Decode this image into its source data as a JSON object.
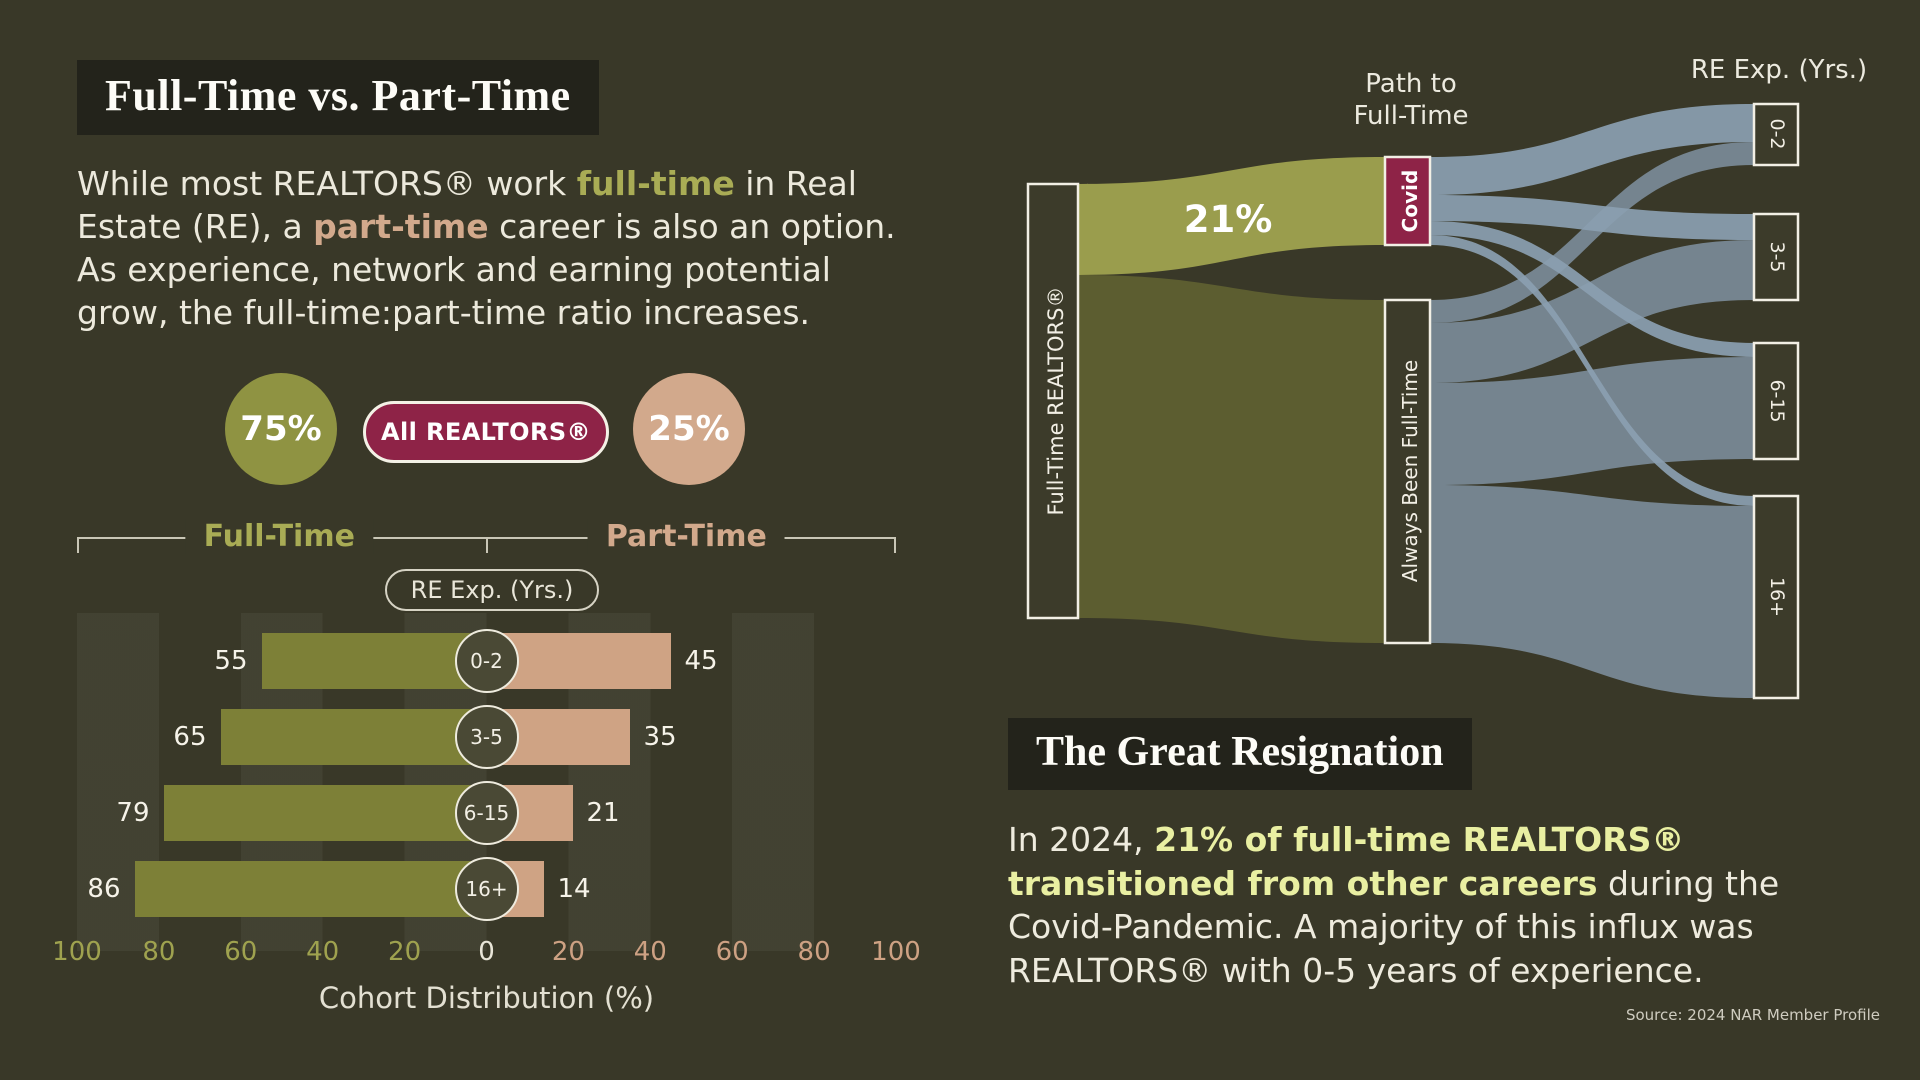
{
  "colors": {
    "background": "#393828",
    "panel_dark": "#23231b",
    "olive": "#8f9342",
    "olive_text": "#a9ac55",
    "olive_bar": "#7d8037",
    "olive_flow": "#9a9d4d",
    "olive_flow_dark": "#5c5d30",
    "tan": "#d2a98c",
    "tan_bar": "#cfa384",
    "maroon": "#8e2347",
    "blue_flow": "#8497a9",
    "highlight_yellow": "#e9efa2",
    "text_light": "#f2efe5"
  },
  "left_panel": {
    "title": "Full-Time vs. Part-Time",
    "intro": {
      "part1": "While most REALTORS® work ",
      "full_time_word": "full-time",
      "part2": " in Real Estate (RE), a ",
      "part_time_word": "part-time",
      "part3": " career is also an option. As experience, network and earning potential grow, the full-time:part-time ratio increases."
    },
    "summary": {
      "full_time_pct": "75%",
      "badge_label": "All REALTORS®",
      "part_time_pct": "25%",
      "full_time_label": "Full-Time",
      "part_time_label": "Part-Time",
      "experience_pill": "RE Exp. (Yrs.)"
    },
    "axis": {
      "xlabel": "Cohort Distribution (%)"
    }
  },
  "right_panel": {
    "sankey": {
      "header_line1": "Path to",
      "header_line2": "Full-Time",
      "right_axis_label": "RE Exp. (Yrs.)",
      "covid_flow_label": "21%"
    },
    "resignation": {
      "title": "The Great Resignation",
      "body_part1": "In 2024, ",
      "body_highlight": "21% of full-time REALTORS® transitioned from other careers",
      "body_part2": " during the Covid-Pandemic. A majority of this influx was REALTORS® with 0-5 years of experience.",
      "source": "Source: 2024 NAR Member Profile"
    }
  },
  "chart_data": [
    {
      "type": "bar",
      "variant": "diverging-butterfly",
      "title": "Full-Time vs. Part-Time",
      "categories": [
        "0-2",
        "3-5",
        "6-15",
        "16+"
      ],
      "category_axis_label": "RE Exp. (Yrs.)",
      "series": [
        {
          "name": "Full-Time",
          "side": "left",
          "values": [
            55,
            65,
            79,
            86
          ],
          "color": "#7d8037",
          "share_of_all_realtors": 75
        },
        {
          "name": "Part-Time",
          "side": "right",
          "values": [
            45,
            35,
            21,
            14
          ],
          "color": "#cfa384",
          "share_of_all_realtors": 25
        }
      ],
      "x_ticks": [
        100,
        80,
        60,
        40,
        20,
        0,
        20,
        40,
        60,
        80,
        100
      ],
      "xlim": [
        0,
        100
      ],
      "xlabel": "Cohort Distribution (%)",
      "legend": [
        "Full-Time",
        "Part-Time"
      ]
    },
    {
      "type": "sankey",
      "title": "Path to Full-Time",
      "right_axis_label": "RE Exp. (Yrs.)",
      "nodes": [
        {
          "id": "full_time_realtors",
          "label": "Full-Time REALTORS®",
          "column": 0
        },
        {
          "id": "covid",
          "label": "Covid",
          "column": 1
        },
        {
          "id": "always_full_time",
          "label": "Always Been Full-Time",
          "column": 1
        },
        {
          "id": "exp_0_2",
          "label": "0-2",
          "column": 2
        },
        {
          "id": "exp_3_5",
          "label": "3-5",
          "column": 2
        },
        {
          "id": "exp_6_15",
          "label": "6-15",
          "column": 2
        },
        {
          "id": "exp_16_plus",
          "label": "16+",
          "column": 2
        }
      ],
      "links": [
        {
          "source": "full_time_realtors",
          "target": "covid",
          "value": 21,
          "label": "21%",
          "color": "#9a9d4d"
        },
        {
          "source": "full_time_realtors",
          "target": "always_full_time",
          "value": 79,
          "color": "#5c5d30"
        },
        {
          "source": "covid",
          "target": "exp_0_2",
          "value": 9,
          "estimated": true
        },
        {
          "source": "covid",
          "target": "exp_3_5",
          "value": 6,
          "estimated": true
        },
        {
          "source": "covid",
          "target": "exp_6_15",
          "value": 3.5,
          "estimated": true
        },
        {
          "source": "covid",
          "target": "exp_16_plus",
          "value": 2.5,
          "estimated": true
        },
        {
          "source": "always_full_time",
          "target": "exp_0_2",
          "value": 5,
          "estimated": true
        },
        {
          "source": "always_full_time",
          "target": "exp_3_5",
          "value": 14,
          "estimated": true
        },
        {
          "source": "always_full_time",
          "target": "exp_6_15",
          "value": 24,
          "estimated": true
        },
        {
          "source": "always_full_time",
          "target": "exp_16_plus",
          "value": 36,
          "estimated": true
        }
      ],
      "units": "% of full-time REALTORS®"
    }
  ]
}
